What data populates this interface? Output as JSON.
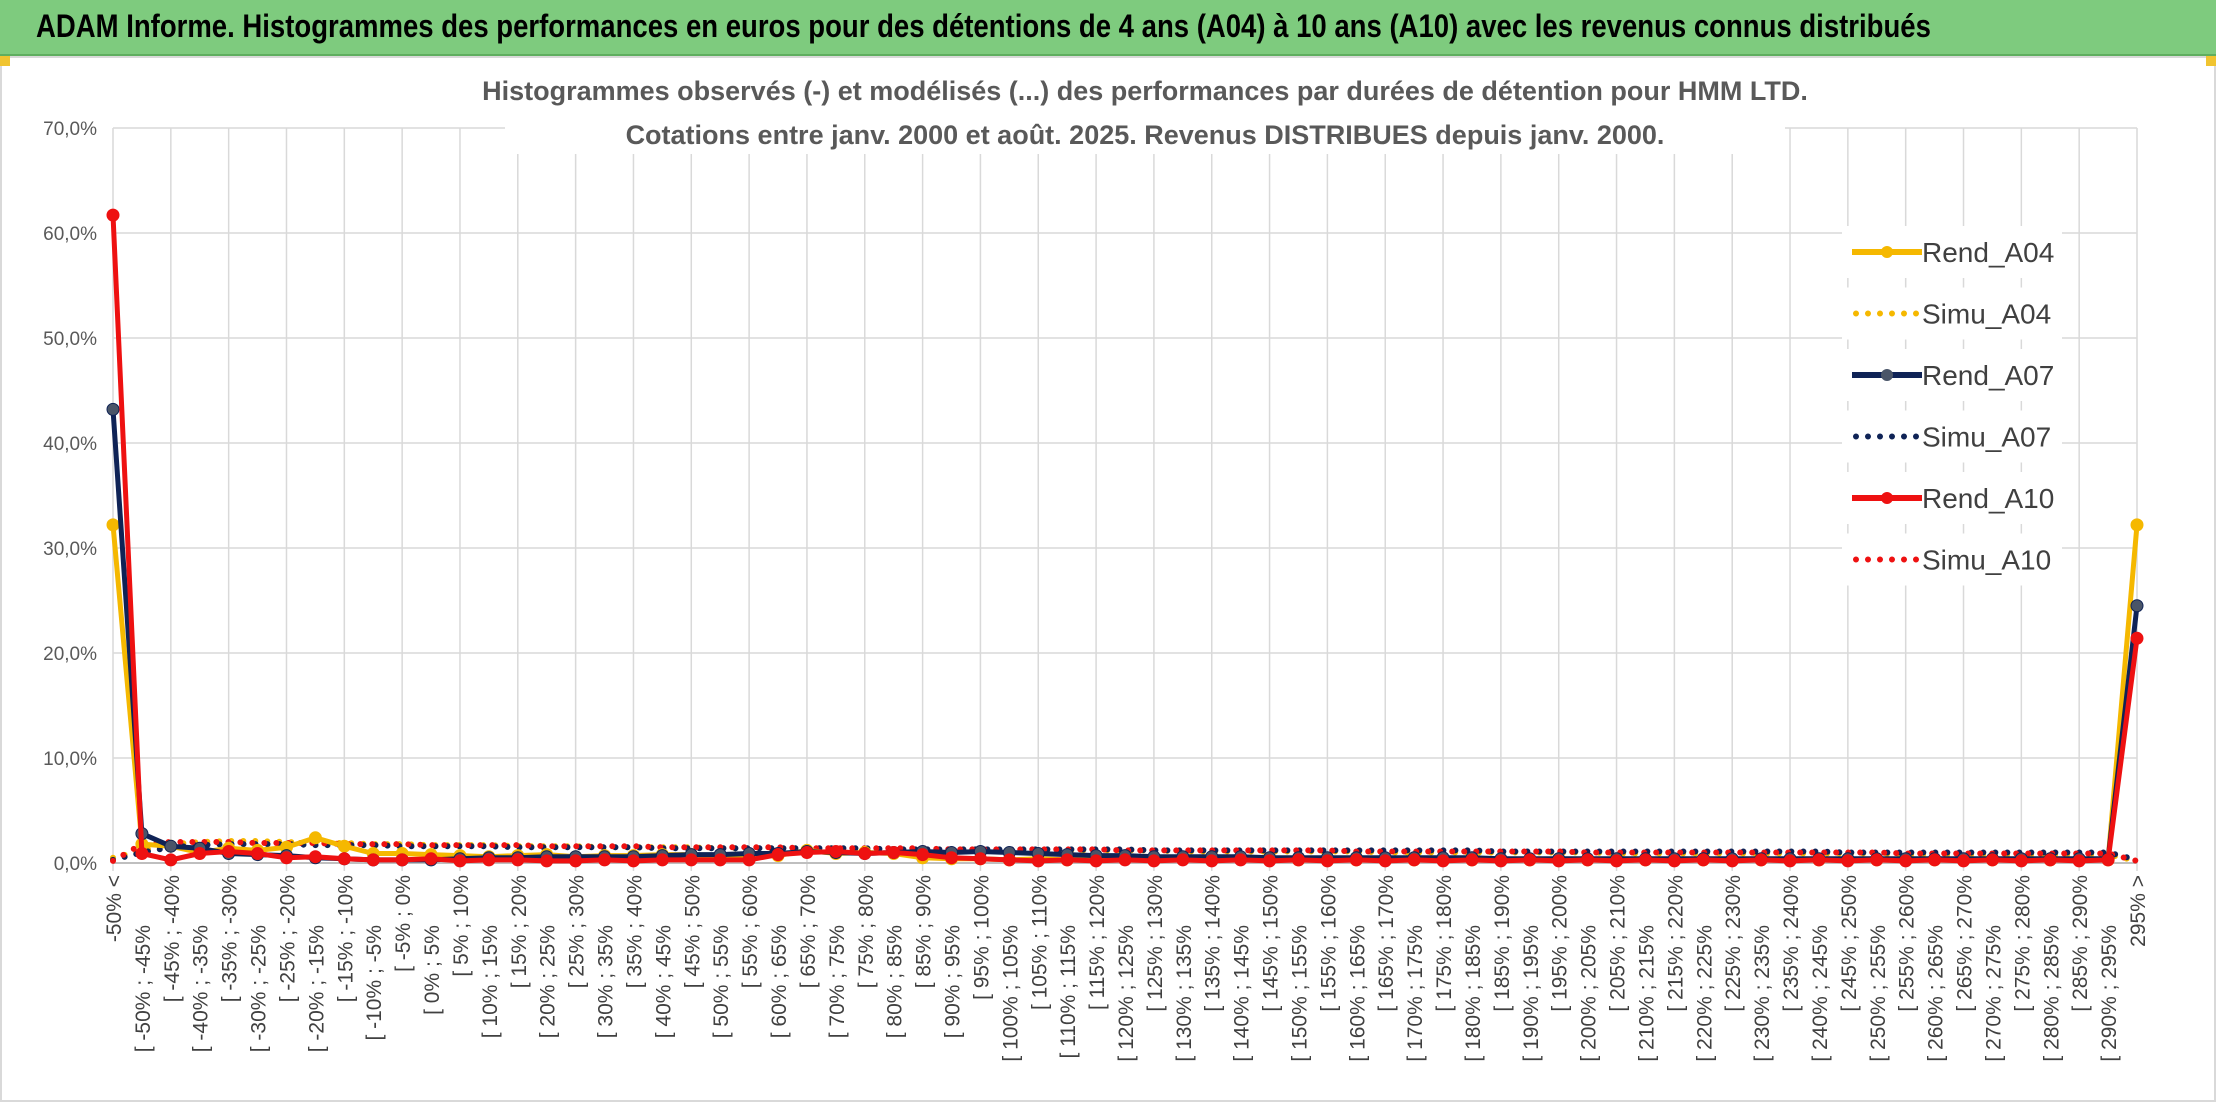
{
  "banner": {
    "title": "ADAM Informe. Histogrammes des performances en euros pour des détentions de 4 ans (A04) à 10 ans (A10) avec les revenus connus distribués"
  },
  "colors": {
    "banner_bg": "#7ecb7e",
    "A04": "#f5b800",
    "A07": "#0f2356",
    "A10": "#ee1111",
    "A07_marker": "#4a5568",
    "grid": "#d9d9d9"
  },
  "chart_data": {
    "type": "line",
    "title": [
      "Histogrammes observés (-) et modélisés (...) des performances par durées de détention pour HMM LTD.",
      "Cotations entre janv. 2000 et août. 2025. Revenus DISTRIBUES depuis janv. 2000."
    ],
    "xlabel": "",
    "ylabel": "",
    "ylim": [
      0,
      70
    ],
    "y_ticks": [
      "0,0%",
      "10,0%",
      "20,0%",
      "30,0%",
      "40,0%",
      "50,0%",
      "60,0%",
      "70,0%"
    ],
    "grid": true,
    "legend_position": "right",
    "categories": [
      "-50% <",
      "[ -50% ; -45%",
      "[ -45% ; -40%",
      "[ -40% ; -35%",
      "[ -35% ; -30%",
      "[ -30% ; -25%",
      "[ -25% ; -20%",
      "[ -20% ; -15%",
      "[ -15% ; -10%",
      "[ -10% ; -5%",
      "[ -5% ; 0%",
      "[ 0% ; 5%",
      "[ 5% ; 10%",
      "[ 10% ; 15%",
      "[ 15% ; 20%",
      "[ 20% ; 25%",
      "[ 25% ; 30%",
      "[ 30% ; 35%",
      "[ 35% ; 40%",
      "[ 40% ; 45%",
      "[ 45% ; 50%",
      "[ 50% ; 55%",
      "[ 55% ; 60%",
      "[ 60% ; 65%",
      "[ 65% ; 70%",
      "[ 70% ; 75%",
      "[ 75% ; 80%",
      "[ 80% ; 85%",
      "[ 85% ; 90%",
      "[ 90% ; 95%",
      "[ 95% ; 100%",
      "[ 100% ; 105%",
      "[ 105% ; 110%",
      "[ 110% ; 115%",
      "[ 115% ; 120%",
      "[ 120% ; 125%",
      "[ 125% ; 130%",
      "[ 130% ; 135%",
      "[ 135% ; 140%",
      "[ 140% ; 145%",
      "[ 145% ; 150%",
      "[ 150% ; 155%",
      "[ 155% ; 160%",
      "[ 160% ; 165%",
      "[ 165% ; 170%",
      "[ 170% ; 175%",
      "[ 175% ; 180%",
      "[ 180% ; 185%",
      "[ 185% ; 190%",
      "[ 190% ; 195%",
      "[ 195% ; 200%",
      "[ 200% ; 205%",
      "[ 205% ; 210%",
      "[ 210% ; 215%",
      "[ 215% ; 220%",
      "[ 220% ; 225%",
      "[ 225% ; 230%",
      "[ 230% ; 235%",
      "[ 235% ; 240%",
      "[ 240% ; 245%",
      "[ 245% ; 250%",
      "[ 250% ; 255%",
      "[ 255% ; 260%",
      "[ 260% ; 265%",
      "[ 265% ; 270%",
      "[ 270% ; 275%",
      "[ 275% ; 280%",
      "[ 280% ; 285%",
      "[ 285% ; 290%",
      "[ 290% ; 295%",
      "295% >"
    ],
    "series": [
      {
        "name": "Rend_A04",
        "style": "solid",
        "color": "#f5b800",
        "values": [
          32.2,
          1.8,
          1.6,
          1.0,
          1.4,
          1.2,
          1.5,
          2.4,
          1.6,
          0.9,
          0.9,
          0.8,
          0.7,
          0.6,
          0.7,
          0.8,
          0.6,
          0.7,
          0.7,
          0.8,
          0.8,
          0.7,
          0.6,
          0.7,
          1.2,
          0.9,
          1.0,
          0.9,
          0.5,
          0.4,
          0.4,
          0.3,
          0.4,
          0.3,
          0.4,
          0.4,
          0.3,
          0.4,
          0.3,
          0.4,
          0.3,
          0.3,
          0.3,
          0.3,
          0.3,
          0.3,
          0.3,
          0.3,
          0.3,
          0.3,
          0.3,
          0.3,
          0.3,
          0.3,
          0.3,
          0.3,
          0.3,
          0.3,
          0.3,
          0.3,
          0.3,
          0.3,
          0.3,
          0.3,
          0.3,
          0.3,
          0.3,
          0.3,
          0.3,
          0.3,
          32.2
        ]
      },
      {
        "name": "Simu_A04",
        "style": "dotted",
        "color": "#f5b800",
        "values": [
          0.5,
          1.2,
          1.8,
          2.0,
          2.1,
          2.1,
          2.0,
          1.9,
          1.9,
          1.8,
          1.8,
          1.7,
          1.7,
          1.7,
          1.6,
          1.6,
          1.6,
          1.5,
          1.5,
          1.5,
          1.5,
          1.4,
          1.4,
          1.4,
          1.4,
          1.4,
          1.3,
          1.3,
          1.3,
          1.3,
          1.3,
          1.2,
          1.2,
          1.2,
          1.2,
          1.2,
          1.2,
          1.1,
          1.1,
          1.1,
          1.1,
          1.1,
          1.1,
          1.1,
          1.0,
          1.0,
          1.0,
          1.0,
          1.0,
          1.0,
          1.0,
          1.0,
          0.9,
          0.9,
          0.9,
          0.9,
          0.9,
          0.9,
          0.9,
          0.9,
          0.9,
          0.9,
          0.8,
          0.8,
          0.8,
          0.8,
          0.8,
          0.8,
          0.8,
          0.8,
          0.2
        ]
      },
      {
        "name": "Rend_A07",
        "style": "solid",
        "color": "#0f2356",
        "values": [
          43.2,
          2.8,
          1.6,
          1.4,
          0.9,
          0.8,
          0.7,
          0.5,
          0.4,
          0.3,
          0.3,
          0.3,
          0.4,
          0.5,
          0.5,
          0.6,
          0.6,
          0.6,
          0.6,
          0.7,
          0.8,
          0.8,
          0.9,
          0.9,
          1.1,
          1.0,
          0.9,
          1.0,
          1.1,
          1.0,
          1.1,
          1.0,
          0.9,
          0.8,
          0.7,
          0.7,
          0.6,
          0.6,
          0.6,
          0.6,
          0.5,
          0.5,
          0.5,
          0.5,
          0.5,
          0.5,
          0.5,
          0.5,
          0.4,
          0.4,
          0.4,
          0.4,
          0.4,
          0.4,
          0.4,
          0.4,
          0.4,
          0.4,
          0.4,
          0.4,
          0.4,
          0.4,
          0.4,
          0.4,
          0.4,
          0.4,
          0.4,
          0.4,
          0.4,
          0.4,
          24.5
        ]
      },
      {
        "name": "Simu_A07",
        "style": "dotted",
        "color": "#0f2356",
        "values": [
          0.3,
          1.0,
          1.5,
          1.7,
          1.8,
          1.8,
          1.8,
          1.7,
          1.7,
          1.7,
          1.6,
          1.6,
          1.6,
          1.6,
          1.5,
          1.5,
          1.5,
          1.5,
          1.5,
          1.4,
          1.4,
          1.4,
          1.4,
          1.4,
          1.4,
          1.4,
          1.4,
          1.3,
          1.3,
          1.3,
          1.3,
          1.3,
          1.3,
          1.3,
          1.3,
          1.3,
          1.2,
          1.2,
          1.2,
          1.2,
          1.2,
          1.2,
          1.2,
          1.2,
          1.2,
          1.2,
          1.2,
          1.2,
          1.1,
          1.1,
          1.1,
          1.1,
          1.1,
          1.1,
          1.1,
          1.1,
          1.1,
          1.1,
          1.1,
          1.1,
          1.0,
          1.0,
          1.0,
          1.0,
          1.0,
          1.0,
          1.0,
          1.0,
          1.0,
          1.0,
          0.3
        ]
      },
      {
        "name": "Rend_A10",
        "style": "solid",
        "color": "#ee1111",
        "values": [
          61.7,
          0.9,
          0.3,
          0.9,
          1.1,
          0.9,
          0.5,
          0.6,
          0.4,
          0.3,
          0.3,
          0.4,
          0.2,
          0.3,
          0.3,
          0.2,
          0.2,
          0.3,
          0.2,
          0.3,
          0.3,
          0.3,
          0.3,
          0.8,
          1.0,
          1.1,
          0.9,
          1.0,
          0.8,
          0.5,
          0.4,
          0.3,
          0.2,
          0.3,
          0.2,
          0.3,
          0.2,
          0.3,
          0.2,
          0.3,
          0.2,
          0.3,
          0.2,
          0.3,
          0.2,
          0.3,
          0.2,
          0.3,
          0.2,
          0.3,
          0.2,
          0.3,
          0.2,
          0.3,
          0.2,
          0.3,
          0.2,
          0.3,
          0.2,
          0.3,
          0.2,
          0.3,
          0.2,
          0.3,
          0.2,
          0.3,
          0.2,
          0.3,
          0.2,
          0.3,
          21.4
        ]
      },
      {
        "name": "Simu_A10",
        "style": "dotted",
        "color": "#ee1111",
        "values": [
          0.2,
          1.8,
          2.0,
          2.0,
          2.0,
          1.9,
          1.9,
          1.9,
          1.8,
          1.8,
          1.8,
          1.7,
          1.7,
          1.7,
          1.7,
          1.6,
          1.6,
          1.6,
          1.6,
          1.5,
          1.5,
          1.5,
          1.5,
          1.5,
          1.4,
          1.4,
          1.4,
          1.4,
          1.4,
          1.3,
          1.3,
          1.3,
          1.3,
          1.3,
          1.3,
          1.2,
          1.2,
          1.2,
          1.2,
          1.2,
          1.2,
          1.2,
          1.2,
          1.1,
          1.1,
          1.1,
          1.1,
          1.1,
          1.1,
          1.1,
          1.1,
          1.0,
          1.0,
          1.0,
          1.0,
          1.0,
          1.0,
          1.0,
          1.0,
          1.0,
          1.0,
          1.0,
          0.9,
          0.9,
          0.9,
          0.9,
          0.9,
          0.9,
          0.9,
          0.9,
          0.2
        ]
      }
    ]
  }
}
